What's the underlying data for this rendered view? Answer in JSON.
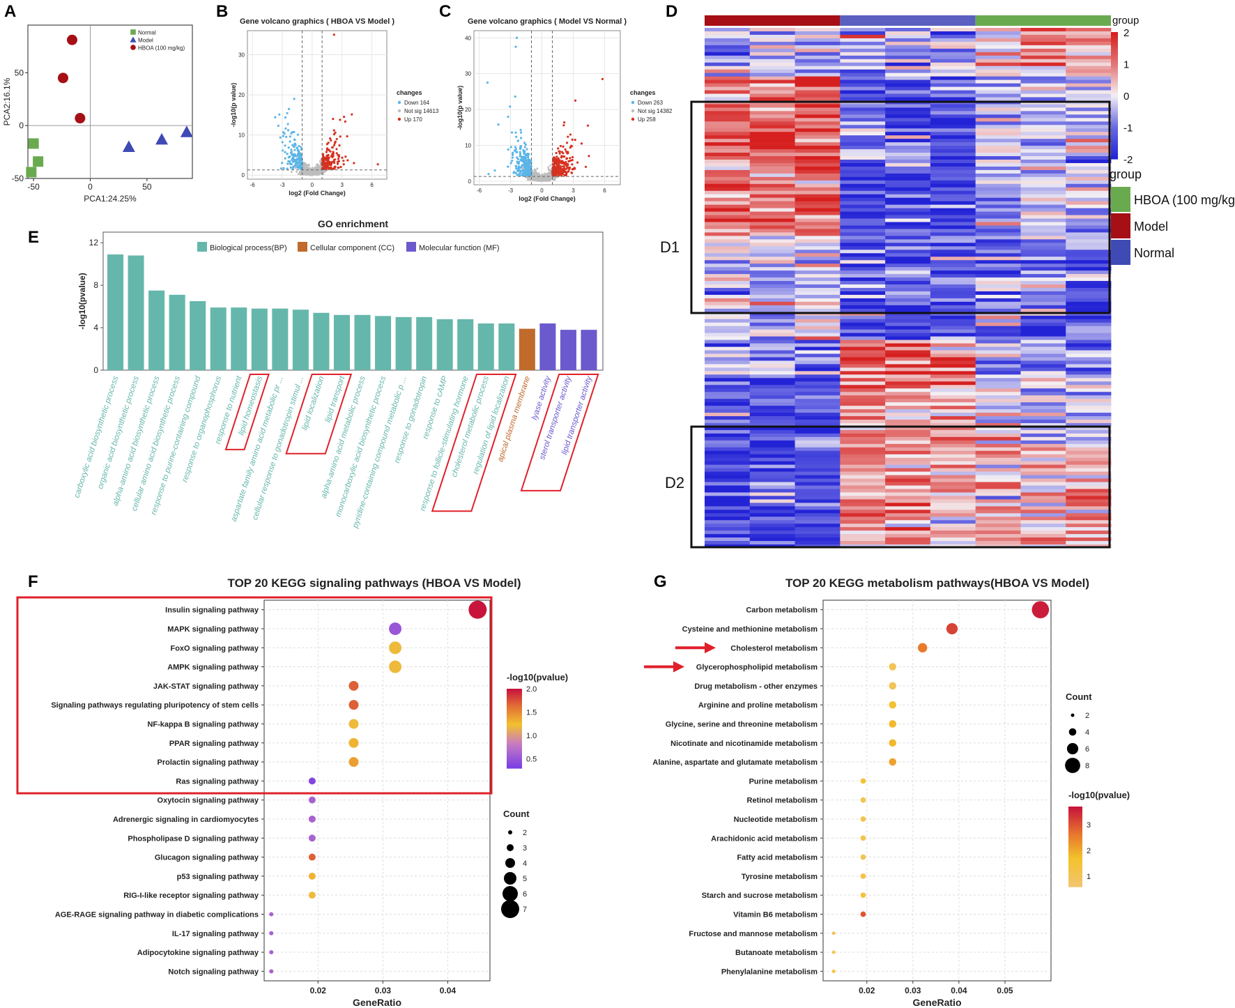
{
  "panel_letters": {
    "a": "A",
    "b": "B",
    "c": "C",
    "d": "D",
    "e": "E",
    "f": "F",
    "g": "G"
  },
  "colors": {
    "normal": "#6aaa4f",
    "model": "#a50f15",
    "hboa": "#a50f15",
    "pca_model": "#3f4ab5",
    "down": "#5ab4e8",
    "up": "#d7301f",
    "ns": "#bdbdbd",
    "bp": "#66b7ab",
    "cc": "#c06a2b",
    "mf": "#6a5acd",
    "highlight": "#e0202a"
  },
  "chart_data": [
    {
      "id": "pca",
      "type": "scatter",
      "xlabel": "PCA1:24.25%",
      "ylabel": "PCA2:16.1%",
      "xlim": [
        -55,
        90
      ],
      "ylim": [
        -50,
        95
      ],
      "xticks": [
        -50,
        0,
        50
      ],
      "yticks": [
        -50,
        0,
        50
      ],
      "legend": [
        {
          "name": "Normal",
          "shape": "square"
        },
        {
          "name": "Model",
          "shape": "triangle"
        },
        {
          "name": "HBOA (100 mg/kg)",
          "shape": "circle"
        }
      ],
      "series": [
        {
          "name": "Normal",
          "shape": "square",
          "points": [
            [
              -50,
              -17
            ],
            [
              -46,
              -34
            ],
            [
              -52,
              -44
            ]
          ]
        },
        {
          "name": "Model",
          "shape": "triangle",
          "points": [
            [
              34,
              -20
            ],
            [
              63,
              -13
            ],
            [
              85,
              -6
            ]
          ]
        },
        {
          "name": "HBOA (100 mg/kg)",
          "shape": "circle",
          "points": [
            [
              -16,
              81
            ],
            [
              -24,
              45
            ],
            [
              -9,
              7
            ]
          ]
        }
      ]
    },
    {
      "id": "volcanoB",
      "type": "scatter",
      "title": "Gene volcano graphics ( HBOA VS Model )",
      "xlabel": "log2 (Fold Change)",
      "ylabel": "-log10(p value)",
      "xlim": [
        -6.5,
        7.5
      ],
      "ylim": [
        -1,
        36
      ],
      "xticks": [
        -6,
        -3,
        0,
        3,
        6
      ],
      "yticks": [
        0,
        10,
        20,
        30
      ],
      "legend_title": "changes",
      "legend": [
        {
          "name": "Down 164",
          "color": "down"
        },
        {
          "name": "Not sig 14613",
          "color": "ns"
        },
        {
          "name": "Up 170",
          "color": "up"
        }
      ]
    },
    {
      "id": "volcanoC",
      "type": "scatter",
      "title": "Gene volcano graphics ( Model VS Normal )",
      "xlabel": "log2 (Fold Change)",
      "ylabel": "-log10(p value)",
      "xlim": [
        -6.5,
        7.5
      ],
      "ylim": [
        -1,
        42
      ],
      "xticks": [
        -6,
        -3,
        0,
        3,
        6
      ],
      "yticks": [
        0,
        10,
        20,
        30,
        40
      ],
      "legend_title": "changes",
      "legend": [
        {
          "name": "Down 263",
          "color": "down"
        },
        {
          "name": "Not sig 14382",
          "color": "ns"
        },
        {
          "name": "Up 258",
          "color": "up"
        }
      ]
    },
    {
      "id": "heatmap",
      "type": "heatmap",
      "groups": [
        "Model",
        "Normal",
        "HBOA (100 mg/kg)"
      ],
      "legend_title": "group",
      "legend_entries": [
        "HBOA (100 mg/kg)",
        "Model",
        "Normal"
      ],
      "colorbar_ticks": [
        2,
        1,
        0,
        -1,
        -2
      ],
      "clusters": [
        "D1",
        "D2"
      ]
    },
    {
      "id": "go",
      "type": "bar",
      "title": "GO enrichment",
      "ylabel": "-log10(pvalue)",
      "ylim": [
        0,
        13
      ],
      "yticks": [
        0,
        4,
        8,
        12
      ],
      "legend": [
        {
          "name": "Biological process(BP)",
          "key": "bp"
        },
        {
          "name": "Cellular component (CC)",
          "key": "cc"
        },
        {
          "name": "Molecular function (MF)",
          "key": "mf"
        }
      ],
      "categories": [
        "carboxylic acid biosynthetic process",
        "organic acid biosynthetic process",
        "alpha-amino acid biosynthetic process",
        "cellular amino acid biosynthetic process",
        "response to purine-containing compound",
        "response to organophosphorus",
        "response to nutrient",
        "lipid homeostasis",
        "aspartate family amino acid metabolic pr ...",
        "cellular response to gonadotropin stimul ...",
        "lipid localization",
        "lipid transport",
        "alpha-amino acid metabolic process",
        "monocarboxylic acid biosynthetic process",
        "pyridine-containing compound metabolic p ...",
        "response to gonadotropin",
        "response to cAMP",
        "response to follicle-stimulating hormone",
        "cholesterol metabolic process",
        "regulation of lipid localization",
        "apical plasma membrane",
        "lyase activity",
        "sterol transporter activity",
        "lipid transporter activity"
      ],
      "values": [
        10.9,
        10.8,
        7.5,
        7.1,
        6.5,
        5.9,
        5.9,
        5.8,
        5.8,
        5.7,
        5.4,
        5.2,
        5.2,
        5.1,
        5.0,
        5.0,
        4.8,
        4.8,
        4.4,
        4.4,
        3.9,
        4.4,
        3.8,
        3.8
      ],
      "ontology": [
        "bp",
        "bp",
        "bp",
        "bp",
        "bp",
        "bp",
        "bp",
        "bp",
        "bp",
        "bp",
        "bp",
        "bp",
        "bp",
        "bp",
        "bp",
        "bp",
        "bp",
        "bp",
        "bp",
        "bp",
        "cc",
        "mf",
        "mf",
        "mf"
      ],
      "highlighted": [
        [
          7,
          7
        ],
        [
          10,
          11
        ],
        [
          18,
          19
        ],
        [
          22,
          23
        ]
      ]
    },
    {
      "id": "keggF",
      "type": "scatter",
      "title": "TOP 20 KEGG signaling pathways (HBOA VS Model)",
      "xlabel": "GeneRatio",
      "xlim": [
        0.0117,
        0.0465
      ],
      "xticks": [
        0.02,
        0.03,
        0.04
      ],
      "colorbar_title": "-log10(pvalue)",
      "colorbar_range": [
        0.3,
        2.0
      ],
      "colorbar_ticks": [
        2.0,
        1.5,
        1.0,
        0.5
      ],
      "size_title": "Count",
      "size_values": [
        2,
        3,
        4,
        5,
        6,
        7
      ],
      "highlight_rows": [
        0,
        9
      ],
      "categories": [
        "Insulin signaling pathway",
        "MAPK signaling pathway",
        "FoxO signaling pathway",
        "AMPK signaling pathway",
        "JAK-STAT signaling pathway",
        "Signaling pathways regulating pluripotency of stem cells",
        "NF-kappa B signaling pathway",
        "PPAR signaling pathway",
        "Prolactin signaling pathway",
        "Ras signaling pathway",
        "Oxytocin signaling pathway",
        "Adrenergic signaling in cardiomyocytes",
        "Phospholipase D signaling pathway",
        "Glucagon signaling pathway",
        "p53 signaling pathway",
        "RIG-I-like receptor signaling pathway",
        "AGE-RAGE signaling pathway in diabetic complications",
        "IL-17 signaling pathway",
        "Adipocytokine signaling pathway",
        "Notch signaling pathway"
      ],
      "x": [
        0.0446,
        0.0319,
        0.0319,
        0.0319,
        0.0255,
        0.0255,
        0.0255,
        0.0255,
        0.0255,
        0.0191,
        0.0191,
        0.0191,
        0.0191,
        0.0191,
        0.0191,
        0.0191,
        0.0128,
        0.0128,
        0.0128,
        0.0128
      ],
      "count": [
        7,
        5,
        5,
        5,
        4,
        4,
        4,
        4,
        4,
        3,
        3,
        3,
        3,
        3,
        3,
        3,
        2,
        2,
        2,
        2
      ],
      "pvalue": [
        2.0,
        0.5,
        1.2,
        1.2,
        1.7,
        1.7,
        1.2,
        1.3,
        1.4,
        0.35,
        0.6,
        0.6,
        0.6,
        1.7,
        1.3,
        1.2,
        0.6,
        0.6,
        0.6,
        0.6
      ]
    },
    {
      "id": "keggG",
      "type": "scatter",
      "title": "TOP 20 KEGG metabolism pathways(HBOA VS Model)",
      "xlabel": "GeneRatio",
      "xlim": [
        0.0105,
        0.06
      ],
      "xticks": [
        0.02,
        0.03,
        0.04,
        0.05
      ],
      "colorbar_title": "-log10(pvalue)",
      "colorbar_range": [
        0.6,
        3.7
      ],
      "colorbar_ticks": [
        3,
        2,
        1
      ],
      "size_title": "Count",
      "size_values": [
        2,
        4,
        6,
        8
      ],
      "arrow_rows": [
        2,
        3
      ],
      "categories": [
        "Carbon metabolism",
        "Cysteine and methionine metabolism",
        "Cholesterol metabolism",
        "Glycerophospholipid metabolism",
        "Drug metabolism - other enzymes",
        "Arginine and proline metabolism",
        "Glycine, serine and threonine metabolism",
        "Nicotinate and nicotinamide metabolism",
        "Alanine, aspartate and glutamate metabolism",
        "Purine metabolism",
        "Retinol metabolism",
        "Nucleotide metabolism",
        "Arachidonic acid metabolism",
        "Fatty acid metabolism",
        "Tyrosine metabolism",
        "Starch and sucrose metabolism",
        "Vitamin B6 metabolism",
        "Fructose and mannose metabolism",
        "Butanoate metabolism",
        "Phenylalanine metabolism"
      ],
      "x": [
        0.0577,
        0.0385,
        0.0321,
        0.0256,
        0.0256,
        0.0256,
        0.0256,
        0.0256,
        0.0256,
        0.0192,
        0.0192,
        0.0192,
        0.0192,
        0.0192,
        0.0192,
        0.0192,
        0.0192,
        0.0128,
        0.0128,
        0.0128
      ],
      "count": [
        9,
        6,
        5,
        4,
        4,
        4,
        4,
        4,
        4,
        3,
        3,
        3,
        3,
        3,
        3,
        3,
        3,
        2,
        2,
        2
      ],
      "pvalue": [
        3.6,
        3.2,
        2.6,
        1.0,
        1.0,
        1.6,
        1.8,
        1.8,
        2.1,
        1.5,
        1.1,
        1.1,
        1.1,
        1.0,
        1.2,
        1.4,
        3.0,
        1.0,
        1.0,
        1.4
      ]
    }
  ]
}
